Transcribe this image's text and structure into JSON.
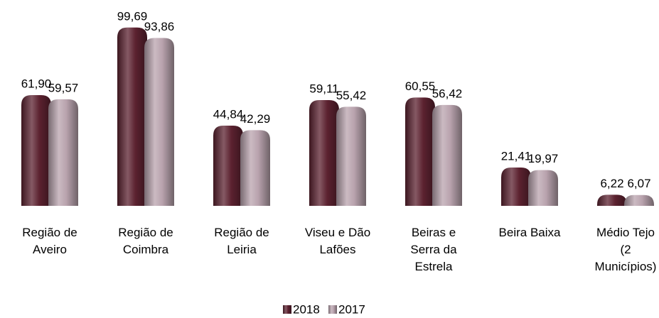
{
  "chart_data": {
    "type": "bar",
    "categories": [
      "Região de\nAveiro",
      "Região de\nCoimbra",
      "Região de\nLeiria",
      "Viseu e Dão\nLafões",
      "Beiras e\nSerra da\nEstrela",
      "Beira Baixa",
      "Médio Tejo\n(2\nMunicípios)"
    ],
    "series": [
      {
        "name": "2018",
        "color": "#5c2230",
        "values": [
          61.9,
          99.69,
          44.84,
          59.11,
          60.55,
          21.41,
          6.22
        ],
        "value_labels": [
          "61,90",
          "99,69",
          "44,84",
          "59,11",
          "60,55",
          "21,41",
          "6,22"
        ]
      },
      {
        "name": "2017",
        "color": "#b9a3ae",
        "values": [
          59.57,
          93.86,
          42.29,
          55.42,
          56.42,
          19.97,
          6.07
        ],
        "value_labels": [
          "59,57",
          "93,86",
          "42,29",
          "55,42",
          "56,42",
          "19,97",
          "6,07"
        ]
      }
    ],
    "ylim": [
      0,
      100
    ],
    "legend": "bottom"
  }
}
